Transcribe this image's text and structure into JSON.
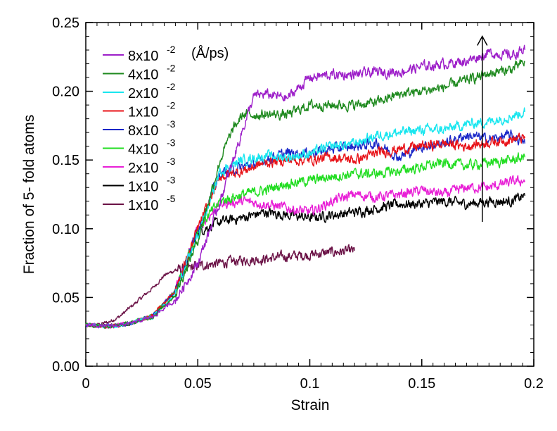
{
  "chart_data": {
    "type": "line",
    "xlabel": "Strain",
    "ylabel": "Fraction of 5- fold atoms",
    "xlim": [
      0,
      0.2
    ],
    "ylim": [
      0,
      0.25
    ],
    "xticks": [
      "0",
      "0.05",
      "0.1",
      "0.15",
      "0.2"
    ],
    "yticks": [
      "0.00",
      "0.05",
      "0.10",
      "0.15",
      "0.20",
      "0.25"
    ],
    "units_annotation": "(Å/ps)",
    "legend_position": "top-left",
    "arrow_annotation": {
      "x": 0.177,
      "y_from": 0.105,
      "y_to": 0.24,
      "meaning": "increasing strain rate"
    },
    "series": [
      {
        "name": "8x10",
        "exp": "-2",
        "color": "#9d1fc9",
        "points": [
          [
            0,
            0.03
          ],
          [
            0.01,
            0.029
          ],
          [
            0.02,
            0.031
          ],
          [
            0.03,
            0.036
          ],
          [
            0.04,
            0.048
          ],
          [
            0.05,
            0.075
          ],
          [
            0.06,
            0.12
          ],
          [
            0.07,
            0.172
          ],
          [
            0.075,
            0.196
          ],
          [
            0.08,
            0.198
          ],
          [
            0.09,
            0.195
          ],
          [
            0.1,
            0.21
          ],
          [
            0.11,
            0.212
          ],
          [
            0.12,
            0.212
          ],
          [
            0.13,
            0.214
          ],
          [
            0.14,
            0.214
          ],
          [
            0.15,
            0.218
          ],
          [
            0.16,
            0.22
          ],
          [
            0.17,
            0.222
          ],
          [
            0.18,
            0.228
          ],
          [
            0.19,
            0.226
          ],
          [
            0.196,
            0.23
          ]
        ]
      },
      {
        "name": "4x10",
        "exp": "-2",
        "color": "#1f8a1f",
        "points": [
          [
            0,
            0.03
          ],
          [
            0.01,
            0.029
          ],
          [
            0.02,
            0.031
          ],
          [
            0.03,
            0.036
          ],
          [
            0.04,
            0.052
          ],
          [
            0.05,
            0.092
          ],
          [
            0.06,
            0.15
          ],
          [
            0.065,
            0.17
          ],
          [
            0.07,
            0.183
          ],
          [
            0.08,
            0.183
          ],
          [
            0.09,
            0.183
          ],
          [
            0.1,
            0.19
          ],
          [
            0.11,
            0.19
          ],
          [
            0.12,
            0.19
          ],
          [
            0.13,
            0.192
          ],
          [
            0.14,
            0.198
          ],
          [
            0.15,
            0.2
          ],
          [
            0.16,
            0.203
          ],
          [
            0.17,
            0.208
          ],
          [
            0.18,
            0.213
          ],
          [
            0.19,
            0.216
          ],
          [
            0.196,
            0.221
          ]
        ]
      },
      {
        "name": "2x10",
        "exp": "-2",
        "color": "#19e6ef",
        "points": [
          [
            0,
            0.03
          ],
          [
            0.01,
            0.029
          ],
          [
            0.02,
            0.031
          ],
          [
            0.03,
            0.036
          ],
          [
            0.04,
            0.052
          ],
          [
            0.05,
            0.095
          ],
          [
            0.06,
            0.142
          ],
          [
            0.07,
            0.15
          ],
          [
            0.08,
            0.153
          ],
          [
            0.09,
            0.152
          ],
          [
            0.1,
            0.155
          ],
          [
            0.11,
            0.16
          ],
          [
            0.12,
            0.162
          ],
          [
            0.13,
            0.168
          ],
          [
            0.14,
            0.17
          ],
          [
            0.15,
            0.172
          ],
          [
            0.16,
            0.172
          ],
          [
            0.17,
            0.176
          ],
          [
            0.18,
            0.178
          ],
          [
            0.19,
            0.182
          ],
          [
            0.196,
            0.185
          ]
        ]
      },
      {
        "name": "1x10",
        "exp": "-2",
        "color": "#e8141a",
        "points": [
          [
            0,
            0.03
          ],
          [
            0.01,
            0.029
          ],
          [
            0.02,
            0.031
          ],
          [
            0.03,
            0.037
          ],
          [
            0.04,
            0.055
          ],
          [
            0.05,
            0.1
          ],
          [
            0.06,
            0.138
          ],
          [
            0.07,
            0.142
          ],
          [
            0.08,
            0.148
          ],
          [
            0.09,
            0.15
          ],
          [
            0.1,
            0.15
          ],
          [
            0.11,
            0.152
          ],
          [
            0.12,
            0.15
          ],
          [
            0.13,
            0.155
          ],
          [
            0.14,
            0.158
          ],
          [
            0.15,
            0.16
          ],
          [
            0.16,
            0.162
          ],
          [
            0.17,
            0.16
          ],
          [
            0.18,
            0.163
          ],
          [
            0.19,
            0.165
          ],
          [
            0.196,
            0.166
          ]
        ]
      },
      {
        "name": "8x10",
        "exp": "-3",
        "color": "#1a27c8",
        "points": [
          [
            0,
            0.03
          ],
          [
            0.01,
            0.029
          ],
          [
            0.02,
            0.031
          ],
          [
            0.03,
            0.037
          ],
          [
            0.04,
            0.055
          ],
          [
            0.05,
            0.1
          ],
          [
            0.06,
            0.14
          ],
          [
            0.07,
            0.145
          ],
          [
            0.08,
            0.15
          ],
          [
            0.09,
            0.155
          ],
          [
            0.1,
            0.155
          ],
          [
            0.11,
            0.158
          ],
          [
            0.12,
            0.16
          ],
          [
            0.13,
            0.162
          ],
          [
            0.14,
            0.152
          ],
          [
            0.15,
            0.16
          ],
          [
            0.16,
            0.162
          ],
          [
            0.17,
            0.168
          ],
          [
            0.18,
            0.165
          ],
          [
            0.19,
            0.168
          ],
          [
            0.196,
            0.162
          ]
        ]
      },
      {
        "name": "4x10",
        "exp": "-3",
        "color": "#22dd22",
        "points": [
          [
            0,
            0.03
          ],
          [
            0.01,
            0.029
          ],
          [
            0.02,
            0.031
          ],
          [
            0.03,
            0.037
          ],
          [
            0.04,
            0.055
          ],
          [
            0.05,
            0.1
          ],
          [
            0.06,
            0.12
          ],
          [
            0.07,
            0.125
          ],
          [
            0.08,
            0.128
          ],
          [
            0.09,
            0.133
          ],
          [
            0.1,
            0.135
          ],
          [
            0.11,
            0.138
          ],
          [
            0.12,
            0.14
          ],
          [
            0.13,
            0.14
          ],
          [
            0.14,
            0.142
          ],
          [
            0.15,
            0.145
          ],
          [
            0.16,
            0.148
          ],
          [
            0.17,
            0.146
          ],
          [
            0.18,
            0.148
          ],
          [
            0.19,
            0.15
          ],
          [
            0.196,
            0.152
          ]
        ]
      },
      {
        "name": "2x10",
        "exp": "-3",
        "color": "#e81fd6",
        "points": [
          [
            0,
            0.03
          ],
          [
            0.01,
            0.029
          ],
          [
            0.02,
            0.031
          ],
          [
            0.03,
            0.037
          ],
          [
            0.04,
            0.055
          ],
          [
            0.05,
            0.1
          ],
          [
            0.06,
            0.118
          ],
          [
            0.07,
            0.12
          ],
          [
            0.08,
            0.118
          ],
          [
            0.09,
            0.115
          ],
          [
            0.1,
            0.112
          ],
          [
            0.11,
            0.12
          ],
          [
            0.12,
            0.125
          ],
          [
            0.13,
            0.123
          ],
          [
            0.14,
            0.125
          ],
          [
            0.15,
            0.128
          ],
          [
            0.16,
            0.125
          ],
          [
            0.17,
            0.13
          ],
          [
            0.18,
            0.13
          ],
          [
            0.19,
            0.134
          ],
          [
            0.196,
            0.135
          ]
        ]
      },
      {
        "name": "1x10",
        "exp": "-3",
        "color": "#000000",
        "points": [
          [
            0,
            0.03
          ],
          [
            0.01,
            0.029
          ],
          [
            0.02,
            0.031
          ],
          [
            0.03,
            0.037
          ],
          [
            0.04,
            0.055
          ],
          [
            0.05,
            0.098
          ],
          [
            0.06,
            0.105
          ],
          [
            0.07,
            0.108
          ],
          [
            0.08,
            0.112
          ],
          [
            0.09,
            0.11
          ],
          [
            0.1,
            0.108
          ],
          [
            0.11,
            0.11
          ],
          [
            0.12,
            0.112
          ],
          [
            0.13,
            0.115
          ],
          [
            0.14,
            0.118
          ],
          [
            0.15,
            0.118
          ],
          [
            0.16,
            0.12
          ],
          [
            0.17,
            0.118
          ],
          [
            0.18,
            0.12
          ],
          [
            0.19,
            0.12
          ],
          [
            0.196,
            0.124
          ]
        ]
      },
      {
        "name": "1x10",
        "exp": "-5",
        "color": "#6b1246",
        "points": [
          [
            0,
            0.03
          ],
          [
            0.005,
            0.03
          ],
          [
            0.01,
            0.032
          ],
          [
            0.015,
            0.036
          ],
          [
            0.02,
            0.043
          ],
          [
            0.025,
            0.05
          ],
          [
            0.03,
            0.057
          ],
          [
            0.035,
            0.066
          ],
          [
            0.04,
            0.07
          ],
          [
            0.045,
            0.071
          ],
          [
            0.05,
            0.073
          ],
          [
            0.06,
            0.075
          ],
          [
            0.07,
            0.077
          ],
          [
            0.08,
            0.078
          ],
          [
            0.09,
            0.08
          ],
          [
            0.1,
            0.081
          ],
          [
            0.11,
            0.083
          ],
          [
            0.12,
            0.084
          ]
        ]
      }
    ]
  }
}
